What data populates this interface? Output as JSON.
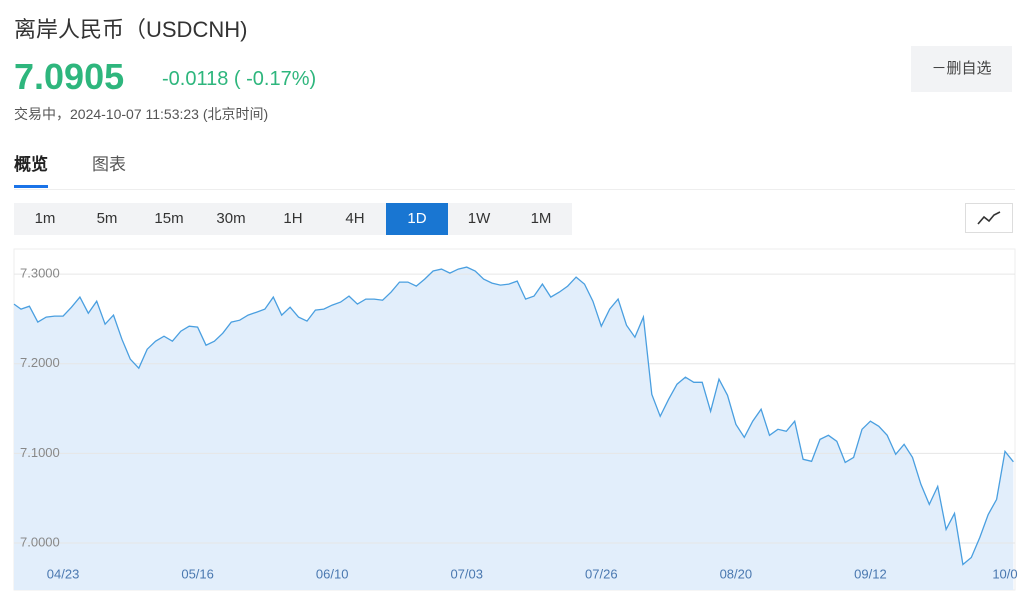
{
  "header": {
    "title": "离岸人民币（USDCNH)",
    "price": "7.0905",
    "change": "-0.0118 ( -0.17%)",
    "status": "交易中，2024-10-07 11:53:23 (北京时间)",
    "button": "－删自选"
  },
  "tabs": [
    {
      "label": "概览",
      "selected": true
    },
    {
      "label": "图表"
    }
  ],
  "intervals": [
    {
      "label": "1m"
    },
    {
      "label": "5m"
    },
    {
      "label": "15m"
    },
    {
      "label": "30m"
    },
    {
      "label": "1H"
    },
    {
      "label": "4H"
    },
    {
      "label": "1D",
      "selected": true
    },
    {
      "label": "1W"
    },
    {
      "label": "1M"
    }
  ],
  "chart_data": {
    "type": "area",
    "color": "#4a9fe0",
    "fill": "#e2eefb",
    "grid": true,
    "ylim": [
      6.9475,
      7.328
    ],
    "yticks": [
      {
        "value": 7.0,
        "label": "7.0000"
      },
      {
        "value": 7.1,
        "label": "7.1000"
      },
      {
        "value": 7.2,
        "label": "7.2000"
      },
      {
        "value": 7.3,
        "label": "7.3000"
      }
    ],
    "categories": [
      null,
      null,
      null,
      null,
      null,
      null,
      "04/23",
      null,
      null,
      null,
      null,
      null,
      null,
      null,
      null,
      null,
      null,
      null,
      null,
      null,
      null,
      null,
      "05/16",
      null,
      null,
      null,
      null,
      null,
      null,
      null,
      null,
      null,
      null,
      null,
      null,
      null,
      null,
      null,
      "06/10",
      null,
      null,
      null,
      null,
      null,
      null,
      null,
      null,
      null,
      null,
      null,
      null,
      null,
      null,
      null,
      "07/03",
      null,
      null,
      null,
      null,
      null,
      null,
      null,
      null,
      null,
      null,
      null,
      null,
      null,
      null,
      null,
      "07/26",
      null,
      null,
      null,
      null,
      null,
      null,
      null,
      null,
      null,
      null,
      null,
      null,
      null,
      null,
      null,
      "08/20",
      null,
      null,
      null,
      null,
      null,
      null,
      null,
      null,
      null,
      null,
      null,
      null,
      null,
      null,
      null,
      "09/12",
      null,
      null,
      null,
      null,
      null,
      null,
      null,
      null,
      null,
      null,
      null,
      null,
      null,
      null,
      null,
      "10/0",
      null
    ],
    "values": [
      7.2665,
      7.2609,
      7.2642,
      7.2464,
      7.252,
      7.2531,
      7.2531,
      7.2631,
      7.2743,
      7.2564,
      7.2698,
      7.2441,
      7.2542,
      7.2274,
      7.205,
      7.195,
      7.2162,
      7.2251,
      7.2307,
      7.2251,
      7.2363,
      7.2419,
      7.2408,
      7.2207,
      7.2251,
      7.2341,
      7.2464,
      7.2486,
      7.2542,
      7.2575,
      7.2609,
      7.2743,
      7.2542,
      7.2631,
      7.252,
      7.2475,
      7.2598,
      7.2609,
      7.2654,
      7.2687,
      7.2754,
      7.2665,
      7.2721,
      7.2721,
      7.2709,
      7.2799,
      7.2911,
      7.2911,
      7.2866,
      7.2944,
      7.3034,
      7.3056,
      7.3011,
      7.3056,
      7.3078,
      7.3034,
      7.2944,
      7.2899,
      7.2877,
      7.2888,
      7.2922,
      7.2721,
      7.2754,
      7.2888,
      7.2743,
      7.2799,
      7.2866,
      7.2966,
      7.2888,
      7.2698,
      7.2419,
      7.2609,
      7.2721,
      7.243,
      7.2296,
      7.252,
      7.1659,
      7.1413,
      7.1603,
      7.1771,
      7.1849,
      7.1793,
      7.1793,
      7.1469,
      7.1827,
      7.1648,
      7.1324,
      7.1179,
      7.1358,
      7.1492,
      7.1201,
      7.1268,
      7.1246,
      7.1358,
      7.0933,
      7.0911,
      7.1156,
      7.1201,
      7.1134,
      7.0899,
      7.0955,
      7.1268,
      7.1358,
      7.1302,
      7.1201,
      7.0989,
      7.1101,
      7.0955,
      7.0654,
      7.043,
      7.0631,
      7.0151,
      7.033,
      6.976,
      6.9838,
      7.0061,
      7.0318,
      7.0486,
      7.1022,
      7.0905
    ]
  }
}
